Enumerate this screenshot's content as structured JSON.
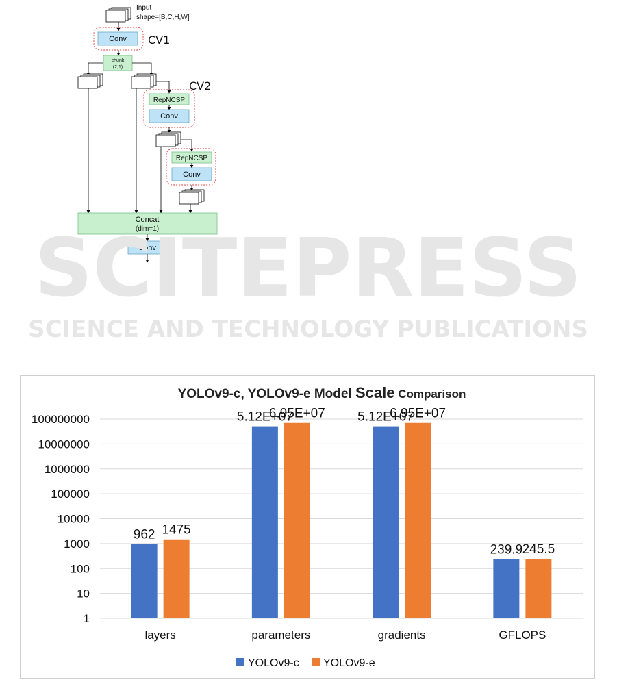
{
  "diagram": {
    "input_label": "Input",
    "input_shape": "shape=[B,C,H,W]",
    "cv1_label": "CV1",
    "cv2_label": "CV2",
    "conv_label": "Conv",
    "chunk_label": "chunk",
    "chunk_args": "(2,1)",
    "repncsp_label": "RepNCSP",
    "concat_label": "Concat",
    "concat_args": "(dim=1)"
  },
  "watermark": {
    "brand": "SCITEPRESS",
    "tagline": "SCIENCE AND TECHNOLOGY PUBLICATIONS"
  },
  "chart_data": {
    "type": "bar",
    "title_part1": "YOLOv9-c, YOLOv9-e Model ",
    "title_part2": "Scale",
    "title_part3": " Comparison",
    "categories": [
      "layers",
      "parameters",
      "gradients",
      "GFLOPS"
    ],
    "series": [
      {
        "name": "YOLOv9-c",
        "color": "#4472c4",
        "values": [
          962,
          51200000,
          51200000,
          239.9
        ],
        "labels": [
          "962",
          "5.12E+07",
          "5.12E+07",
          "239.9"
        ]
      },
      {
        "name": "YOLOv9-e",
        "color": "#ed7d31",
        "values": [
          1475,
          69500000,
          69500000,
          245.5
        ],
        "labels": [
          "1475",
          "6.95E+07",
          "6.95E+07",
          "245.5"
        ]
      }
    ],
    "yscale": "log",
    "ylim": [
      1,
      100000000
    ],
    "ytick_labels": [
      "1",
      "10",
      "100",
      "1000",
      "10000",
      "100000",
      "1000000",
      "10000000",
      "100000000"
    ],
    "grid": true,
    "legend_position": "bottom"
  }
}
